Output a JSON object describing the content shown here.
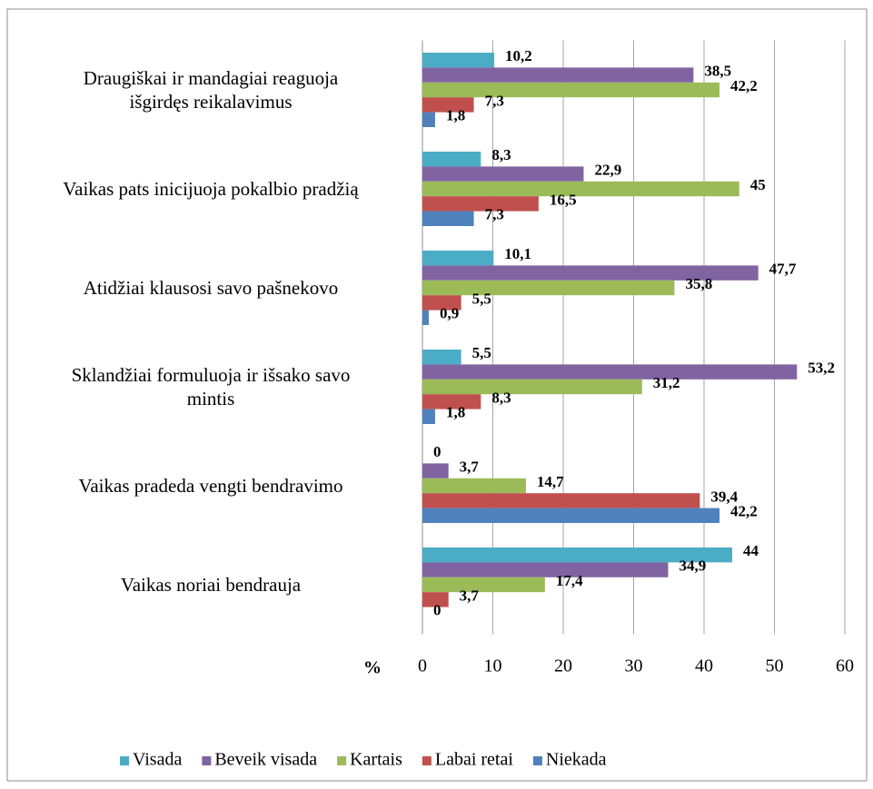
{
  "chart_data": {
    "type": "bar",
    "orientation": "horizontal",
    "categories": [
      "Draugiškai ir mandagiai reaguoja\nišgirdęs reikalavimus",
      "Vaikas pats inicijuoja pokalbio pradžią",
      "Atidžiai klausosi savo pašnekovo",
      "Sklandžiai formuluoja ir išsako savo\nmintis",
      "Vaikas pradeda vengti bendravimo",
      "Vaikas noriai bendrauja"
    ],
    "series": [
      {
        "name": "Visada",
        "color": "#4bacc6",
        "values": [
          10.2,
          8.3,
          10.1,
          5.5,
          0,
          44
        ],
        "value_labels": [
          "10,2",
          "8,3",
          "10,1",
          "5,5",
          "0",
          "44"
        ]
      },
      {
        "name": "Beveik visada",
        "color": "#8064a2",
        "values": [
          38.5,
          22.9,
          47.7,
          53.2,
          3.7,
          34.9
        ],
        "value_labels": [
          "38,5",
          "22,9",
          "47,7",
          "53,2",
          "3,7",
          "34,9"
        ]
      },
      {
        "name": "Kartais",
        "color": "#9bbb59",
        "values": [
          42.2,
          45,
          35.8,
          31.2,
          14.7,
          17.4
        ],
        "value_labels": [
          "42,2",
          "45",
          "35,8",
          "31,2",
          "14,7",
          "17,4"
        ]
      },
      {
        "name": "Labai retai",
        "color": "#c0504d",
        "values": [
          7.3,
          16.5,
          5.5,
          8.3,
          39.4,
          3.7
        ],
        "value_labels": [
          "7,3",
          "16,5",
          "5,5",
          "8,3",
          "39,4",
          "3,7"
        ]
      },
      {
        "name": "Niekada",
        "color": "#4f81bd",
        "values": [
          1.8,
          7.3,
          0.9,
          1.8,
          42.2,
          0
        ],
        "value_labels": [
          "1,8",
          "7,3",
          "0,9",
          "1,8",
          "42,2",
          "0"
        ]
      }
    ],
    "x_label": "%",
    "xlim": [
      0,
      60
    ],
    "xticks": [
      0,
      10,
      20,
      30,
      40,
      50,
      60
    ],
    "grid": true,
    "legend": "bottom"
  }
}
